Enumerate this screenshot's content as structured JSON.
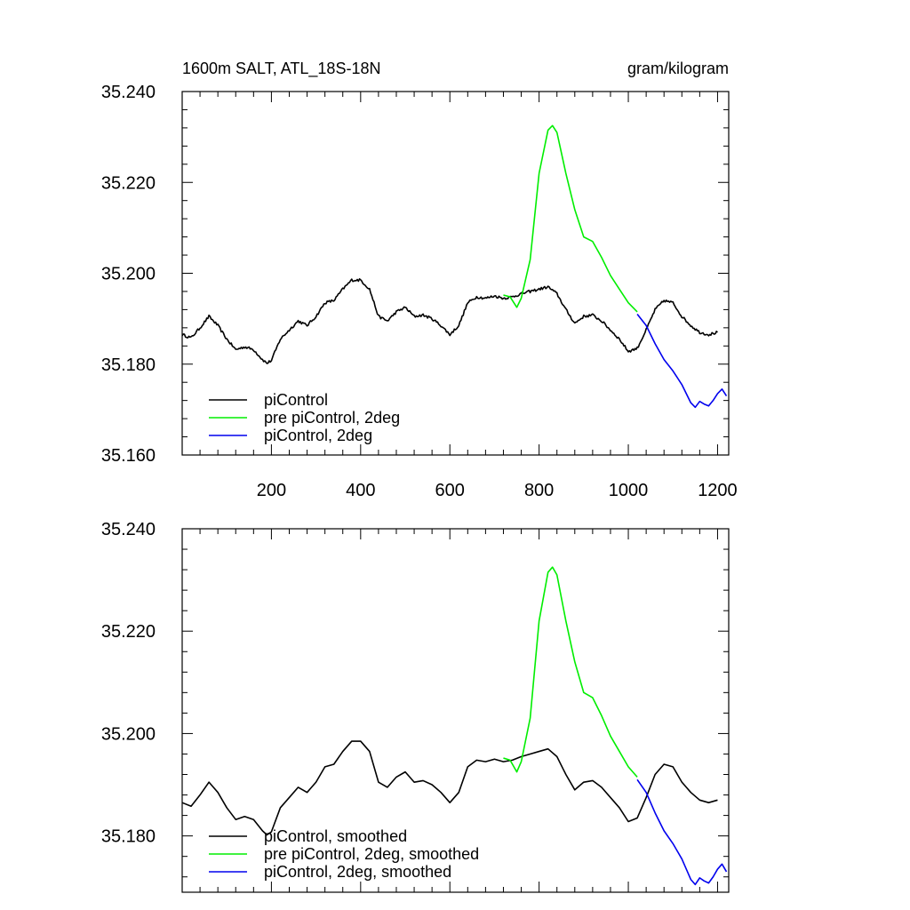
{
  "colors": {
    "piControl": "#000000",
    "prePiControl2deg": "#00ee00",
    "piControl2deg": "#0000ee"
  },
  "chart_data": [
    {
      "type": "line",
      "title": "1600m SALT, ATL_18S-18N",
      "units": "gram/kilogram",
      "xlim": [
        0,
        1225
      ],
      "ylim": [
        35.16,
        35.24
      ],
      "xticks": [
        200,
        400,
        600,
        800,
        1000,
        1200
      ],
      "xtick_labels": [
        "200",
        "400",
        "600",
        "800",
        "1000",
        "1200"
      ],
      "yticks": [
        35.16,
        35.18,
        35.2,
        35.22,
        35.24
      ],
      "ytick_labels": [
        "35.160",
        "35.180",
        "35.200",
        "35.220",
        "35.240"
      ],
      "legend": [
        "piControl",
        "pre piControl, 2deg",
        "piControl, 2deg"
      ],
      "legend_position": "bottom-left",
      "series": [
        {
          "name": "piControl",
          "color_key": "piControl",
          "jitter": true,
          "x": [
            0,
            20,
            40,
            60,
            80,
            100,
            120,
            140,
            160,
            180,
            190,
            200,
            220,
            240,
            260,
            280,
            300,
            320,
            340,
            360,
            380,
            400,
            420,
            440,
            460,
            480,
            500,
            520,
            540,
            560,
            580,
            600,
            620,
            640,
            660,
            680,
            700,
            720,
            740,
            760,
            780,
            800,
            820,
            840,
            860,
            880,
            900,
            920,
            940,
            960,
            980,
            1000,
            1020,
            1040,
            1060,
            1080,
            1100,
            1120,
            1140,
            1160,
            1180,
            1200
          ],
          "y": [
            35.1865,
            35.1858,
            35.188,
            35.1905,
            35.1885,
            35.1855,
            35.1832,
            35.1838,
            35.1832,
            35.181,
            35.1802,
            35.1808,
            35.1855,
            35.1875,
            35.1895,
            35.1885,
            35.1905,
            35.1935,
            35.194,
            35.1965,
            35.1985,
            35.1985,
            35.1965,
            35.1905,
            35.1895,
            35.1915,
            35.1925,
            35.1905,
            35.1908,
            35.19,
            35.1885,
            35.1865,
            35.1885,
            35.1935,
            35.1948,
            35.1945,
            35.195,
            35.1945,
            35.1948,
            35.1955,
            35.196,
            35.1965,
            35.197,
            35.1955,
            35.192,
            35.189,
            35.1905,
            35.1908,
            35.1895,
            35.1875,
            35.1855,
            35.1828,
            35.1835,
            35.1875,
            35.192,
            35.194,
            35.1935,
            35.1905,
            35.1885,
            35.187,
            35.1865,
            35.187
          ]
        },
        {
          "name": "pre piControl, 2deg",
          "color_key": "prePiControl2deg",
          "jitter": false,
          "x": [
            720,
            735,
            750,
            760,
            780,
            800,
            820,
            830,
            840,
            860,
            880,
            900,
            920,
            940,
            960,
            980,
            1000,
            1020
          ],
          "y": [
            35.1952,
            35.1948,
            35.1925,
            35.1945,
            35.203,
            35.222,
            35.2315,
            35.2325,
            35.231,
            35.222,
            35.214,
            35.208,
            35.207,
            35.2035,
            35.1995,
            35.1965,
            35.1935,
            35.1915
          ]
        },
        {
          "name": "piControl, 2deg",
          "color_key": "piControl2deg",
          "jitter": false,
          "x": [
            1020,
            1040,
            1060,
            1080,
            1100,
            1120,
            1140,
            1150,
            1160,
            1170,
            1180,
            1190,
            1200,
            1210,
            1220
          ],
          "y": [
            35.191,
            35.1885,
            35.1845,
            35.181,
            35.1785,
            35.1755,
            35.1715,
            35.1705,
            35.1718,
            35.1712,
            35.1708,
            35.172,
            35.1735,
            35.1745,
            35.173
          ]
        }
      ]
    },
    {
      "type": "line",
      "title": "",
      "units": "",
      "xlim": [
        0,
        1225
      ],
      "ylim": [
        35.169,
        35.24
      ],
      "xticks": [
        200,
        400,
        600,
        800,
        1000,
        1200
      ],
      "xtick_labels": [],
      "yticks": [
        35.18,
        35.2,
        35.22,
        35.24
      ],
      "ytick_labels": [
        "35.180",
        "35.200",
        "35.220",
        "35.240"
      ],
      "legend": [
        "piControl, smoothed",
        "pre piControl, 2deg, smoothed",
        "piControl, 2deg, smoothed"
      ],
      "legend_position": "bottom-left",
      "series": [
        {
          "name": "piControl, smoothed",
          "color_key": "piControl",
          "jitter": false,
          "x": [
            0,
            20,
            40,
            60,
            80,
            100,
            120,
            140,
            160,
            180,
            190,
            200,
            220,
            240,
            260,
            280,
            300,
            320,
            340,
            360,
            380,
            400,
            420,
            440,
            460,
            480,
            500,
            520,
            540,
            560,
            580,
            600,
            620,
            640,
            660,
            680,
            700,
            720,
            740,
            760,
            780,
            800,
            820,
            840,
            860,
            880,
            900,
            920,
            940,
            960,
            980,
            1000,
            1020,
            1040,
            1060,
            1080,
            1100,
            1120,
            1140,
            1160,
            1180,
            1200
          ],
          "y": [
            35.1865,
            35.1858,
            35.188,
            35.1905,
            35.1885,
            35.1855,
            35.1832,
            35.1838,
            35.1832,
            35.181,
            35.1802,
            35.1808,
            35.1855,
            35.1875,
            35.1895,
            35.1885,
            35.1905,
            35.1935,
            35.194,
            35.1965,
            35.1985,
            35.1985,
            35.1965,
            35.1905,
            35.1895,
            35.1915,
            35.1925,
            35.1905,
            35.1908,
            35.19,
            35.1885,
            35.1865,
            35.1885,
            35.1935,
            35.1948,
            35.1945,
            35.195,
            35.1945,
            35.1948,
            35.1955,
            35.196,
            35.1965,
            35.197,
            35.1955,
            35.192,
            35.189,
            35.1905,
            35.1908,
            35.1895,
            35.1875,
            35.1855,
            35.1828,
            35.1835,
            35.1875,
            35.192,
            35.194,
            35.1935,
            35.1905,
            35.1885,
            35.187,
            35.1865,
            35.187
          ]
        },
        {
          "name": "pre piControl, 2deg, smoothed",
          "color_key": "prePiControl2deg",
          "jitter": false,
          "x": [
            720,
            735,
            750,
            760,
            780,
            800,
            820,
            830,
            840,
            860,
            880,
            900,
            920,
            940,
            960,
            980,
            1000,
            1020
          ],
          "y": [
            35.1952,
            35.1948,
            35.1925,
            35.1945,
            35.203,
            35.222,
            35.2315,
            35.2325,
            35.231,
            35.222,
            35.214,
            35.208,
            35.207,
            35.2035,
            35.1995,
            35.1965,
            35.1935,
            35.1915
          ]
        },
        {
          "name": "piControl, 2deg, smoothed",
          "color_key": "piControl2deg",
          "jitter": false,
          "x": [
            1020,
            1040,
            1060,
            1080,
            1100,
            1120,
            1140,
            1150,
            1160,
            1170,
            1180,
            1190,
            1200,
            1210,
            1220
          ],
          "y": [
            35.191,
            35.1885,
            35.1845,
            35.181,
            35.1785,
            35.1755,
            35.1715,
            35.1705,
            35.1718,
            35.1712,
            35.1708,
            35.172,
            35.1735,
            35.1745,
            35.173
          ]
        }
      ]
    }
  ]
}
